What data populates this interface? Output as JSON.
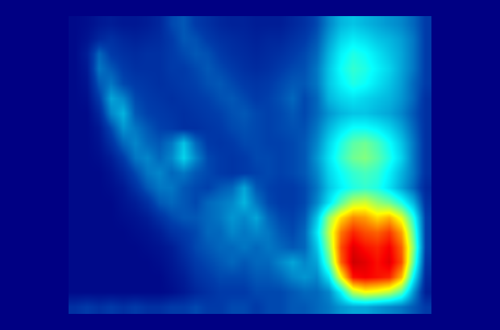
{
  "chart_data": {
    "type": "heatmap",
    "tick_labels": false,
    "color_range": [
      0,
      1
    ],
    "cells": [
      [
        0.02,
        0.03,
        0.05,
        0.06,
        0.05,
        0.05,
        0.06,
        0.08,
        0.14,
        0.16,
        0.12,
        0.1,
        0.08,
        0.07,
        0.07,
        0.06,
        0.06,
        0.06,
        0.08,
        0.1,
        0.14,
        0.22,
        0.28,
        0.3,
        0.28,
        0.26,
        0.24,
        0.22,
        0.18,
        0.12
      ],
      [
        0.02,
        0.04,
        0.08,
        0.1,
        0.08,
        0.07,
        0.08,
        0.09,
        0.12,
        0.16,
        0.15,
        0.12,
        0.1,
        0.09,
        0.08,
        0.07,
        0.08,
        0.08,
        0.1,
        0.12,
        0.16,
        0.25,
        0.32,
        0.35,
        0.33,
        0.3,
        0.28,
        0.25,
        0.2,
        0.12
      ],
      [
        0.02,
        0.06,
        0.18,
        0.12,
        0.1,
        0.09,
        0.1,
        0.1,
        0.12,
        0.14,
        0.16,
        0.15,
        0.12,
        0.1,
        0.09,
        0.08,
        0.09,
        0.1,
        0.12,
        0.14,
        0.18,
        0.28,
        0.36,
        0.4,
        0.38,
        0.34,
        0.3,
        0.26,
        0.2,
        0.12
      ],
      [
        0.02,
        0.05,
        0.2,
        0.16,
        0.12,
        0.1,
        0.1,
        0.1,
        0.12,
        0.12,
        0.14,
        0.16,
        0.14,
        0.12,
        0.1,
        0.09,
        0.1,
        0.12,
        0.14,
        0.15,
        0.2,
        0.3,
        0.38,
        0.42,
        0.4,
        0.36,
        0.32,
        0.26,
        0.2,
        0.12
      ],
      [
        0.02,
        0.04,
        0.16,
        0.2,
        0.14,
        0.12,
        0.11,
        0.1,
        0.11,
        0.12,
        0.13,
        0.15,
        0.16,
        0.14,
        0.12,
        0.11,
        0.12,
        0.14,
        0.16,
        0.16,
        0.2,
        0.3,
        0.36,
        0.4,
        0.38,
        0.34,
        0.3,
        0.25,
        0.18,
        0.12
      ],
      [
        0.02,
        0.03,
        0.12,
        0.26,
        0.22,
        0.14,
        0.12,
        0.11,
        0.1,
        0.11,
        0.12,
        0.13,
        0.15,
        0.16,
        0.14,
        0.12,
        0.13,
        0.15,
        0.18,
        0.14,
        0.18,
        0.28,
        0.32,
        0.34,
        0.32,
        0.3,
        0.28,
        0.24,
        0.18,
        0.1
      ],
      [
        0.02,
        0.02,
        0.08,
        0.22,
        0.28,
        0.16,
        0.13,
        0.12,
        0.11,
        0.1,
        0.11,
        0.12,
        0.13,
        0.15,
        0.16,
        0.14,
        0.13,
        0.14,
        0.16,
        0.14,
        0.18,
        0.24,
        0.28,
        0.3,
        0.3,
        0.28,
        0.26,
        0.22,
        0.16,
        0.1
      ],
      [
        0.02,
        0.02,
        0.05,
        0.14,
        0.24,
        0.2,
        0.16,
        0.13,
        0.12,
        0.1,
        0.1,
        0.11,
        0.12,
        0.14,
        0.15,
        0.14,
        0.13,
        0.14,
        0.15,
        0.15,
        0.2,
        0.28,
        0.34,
        0.38,
        0.38,
        0.36,
        0.32,
        0.26,
        0.18,
        0.1
      ],
      [
        0.02,
        0.02,
        0.04,
        0.1,
        0.18,
        0.22,
        0.18,
        0.16,
        0.2,
        0.3,
        0.18,
        0.12,
        0.11,
        0.12,
        0.14,
        0.14,
        0.13,
        0.13,
        0.14,
        0.16,
        0.22,
        0.32,
        0.4,
        0.46,
        0.48,
        0.44,
        0.38,
        0.3,
        0.2,
        0.1
      ],
      [
        0.02,
        0.02,
        0.03,
        0.06,
        0.12,
        0.2,
        0.22,
        0.18,
        0.22,
        0.32,
        0.22,
        0.14,
        0.12,
        0.11,
        0.12,
        0.14,
        0.14,
        0.13,
        0.14,
        0.16,
        0.24,
        0.34,
        0.42,
        0.48,
        0.5,
        0.46,
        0.4,
        0.32,
        0.2,
        0.1
      ],
      [
        0.02,
        0.02,
        0.02,
        0.04,
        0.08,
        0.14,
        0.2,
        0.22,
        0.18,
        0.2,
        0.16,
        0.14,
        0.12,
        0.11,
        0.12,
        0.13,
        0.14,
        0.13,
        0.14,
        0.16,
        0.22,
        0.32,
        0.38,
        0.42,
        0.44,
        0.42,
        0.36,
        0.28,
        0.2,
        0.1
      ],
      [
        0.02,
        0.02,
        0.02,
        0.03,
        0.05,
        0.1,
        0.16,
        0.2,
        0.2,
        0.16,
        0.14,
        0.13,
        0.16,
        0.18,
        0.26,
        0.16,
        0.13,
        0.12,
        0.12,
        0.14,
        0.2,
        0.3,
        0.36,
        0.4,
        0.42,
        0.4,
        0.34,
        0.26,
        0.18,
        0.08
      ],
      [
        0.02,
        0.02,
        0.02,
        0.02,
        0.04,
        0.06,
        0.1,
        0.16,
        0.18,
        0.16,
        0.14,
        0.18,
        0.2,
        0.22,
        0.28,
        0.2,
        0.14,
        0.12,
        0.12,
        0.14,
        0.22,
        0.34,
        0.46,
        0.56,
        0.58,
        0.52,
        0.48,
        0.4,
        0.28,
        0.1
      ],
      [
        0.02,
        0.02,
        0.02,
        0.02,
        0.03,
        0.04,
        0.06,
        0.1,
        0.14,
        0.16,
        0.16,
        0.18,
        0.2,
        0.24,
        0.22,
        0.26,
        0.18,
        0.14,
        0.13,
        0.16,
        0.3,
        0.52,
        0.66,
        0.74,
        0.72,
        0.66,
        0.7,
        0.6,
        0.4,
        0.12
      ],
      [
        0.02,
        0.02,
        0.02,
        0.02,
        0.02,
        0.03,
        0.04,
        0.06,
        0.1,
        0.12,
        0.14,
        0.18,
        0.18,
        0.22,
        0.2,
        0.22,
        0.2,
        0.16,
        0.14,
        0.18,
        0.34,
        0.56,
        0.76,
        0.84,
        0.8,
        0.78,
        0.82,
        0.72,
        0.46,
        0.12
      ],
      [
        0.02,
        0.02,
        0.02,
        0.02,
        0.02,
        0.02,
        0.03,
        0.04,
        0.06,
        0.1,
        0.14,
        0.16,
        0.18,
        0.18,
        0.2,
        0.18,
        0.2,
        0.18,
        0.16,
        0.18,
        0.3,
        0.52,
        0.8,
        0.9,
        0.86,
        0.84,
        0.88,
        0.78,
        0.5,
        0.12
      ],
      [
        0.02,
        0.02,
        0.02,
        0.02,
        0.02,
        0.02,
        0.02,
        0.03,
        0.05,
        0.08,
        0.12,
        0.14,
        0.16,
        0.18,
        0.16,
        0.18,
        0.18,
        0.22,
        0.26,
        0.22,
        0.26,
        0.46,
        0.78,
        0.92,
        0.9,
        0.86,
        0.9,
        0.8,
        0.46,
        0.1
      ],
      [
        0.02,
        0.02,
        0.02,
        0.02,
        0.02,
        0.02,
        0.02,
        0.02,
        0.04,
        0.06,
        0.1,
        0.12,
        0.14,
        0.14,
        0.14,
        0.16,
        0.16,
        0.18,
        0.22,
        0.24,
        0.22,
        0.34,
        0.62,
        0.86,
        0.88,
        0.86,
        0.84,
        0.7,
        0.36,
        0.08
      ],
      [
        0.02,
        0.02,
        0.02,
        0.02,
        0.02,
        0.02,
        0.02,
        0.02,
        0.03,
        0.05,
        0.08,
        0.1,
        0.12,
        0.12,
        0.12,
        0.14,
        0.14,
        0.14,
        0.16,
        0.18,
        0.18,
        0.22,
        0.36,
        0.56,
        0.62,
        0.6,
        0.56,
        0.46,
        0.24,
        0.06
      ],
      [
        0.1,
        0.12,
        0.1,
        0.12,
        0.1,
        0.12,
        0.1,
        0.1,
        0.12,
        0.12,
        0.14,
        0.12,
        0.12,
        0.14,
        0.14,
        0.12,
        0.14,
        0.14,
        0.16,
        0.16,
        0.18,
        0.2,
        0.24,
        0.26,
        0.26,
        0.24,
        0.22,
        0.2,
        0.16,
        0.12
      ]
    ]
  }
}
